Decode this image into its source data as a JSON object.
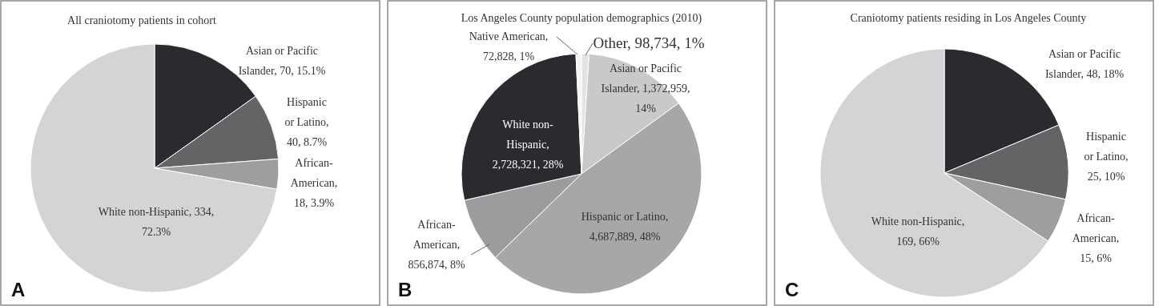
{
  "chart_data": [
    {
      "type": "pie",
      "title": "All craniotomy patients in cohort",
      "categories": [
        "Asian or Pacific Islander",
        "Hispanic or Latino",
        "African-American",
        "White non-Hispanic"
      ],
      "values": [
        70,
        40,
        18,
        334
      ],
      "colors": [
        "#2b2b2f",
        "#636466",
        "#9d9ea0",
        "#d3d4d6"
      ],
      "value_labels": [
        ", 70, 15.1%",
        ", 40, 8.7%",
        ", 18, 3.9%",
        ", 334, 72.3%"
      ],
      "annotations": [
        "A"
      ]
    },
    {
      "type": "pie",
      "title": "Los Angeles County population demographics (2010)",
      "categories": [
        "Other",
        "Asian or Pacific Islander",
        "Hispanic or Latino",
        "African-American",
        "White non-Hispanic",
        "Native American"
      ],
      "values": [
        98734,
        1372959,
        4687889,
        856874,
        2728321,
        72828
      ],
      "colors": [
        "#e2e3e5",
        "#c8c9cb",
        "#a6a7a9",
        "#9b9c9e",
        "#2b2b2f",
        "#f4f4f5"
      ],
      "value_labels": [
        ", 98,734, 1%",
        ", 1,372,959, 14%",
        ", 4,687,889, 48%",
        ", 856,874, 8%",
        ", 2,728,321, 28%",
        ", 72,828, 1%"
      ],
      "annotations": [
        "B"
      ]
    },
    {
      "type": "pie",
      "title": "Craniotomy patients residing in Los Angeles County",
      "categories": [
        "Asian or Pacific Islander",
        "Hispanic or Latino",
        "African-American",
        "White non-Hispanic"
      ],
      "values": [
        48,
        25,
        15,
        169
      ],
      "colors": [
        "#2b2b2f",
        "#636466",
        "#9d9ea0",
        "#d3d4d6"
      ],
      "value_labels": [
        ", 48, 18%",
        ", 25, 10%",
        ", 15, 6%",
        ", 169, 66%"
      ],
      "annotations": [
        "C"
      ]
    }
  ]
}
